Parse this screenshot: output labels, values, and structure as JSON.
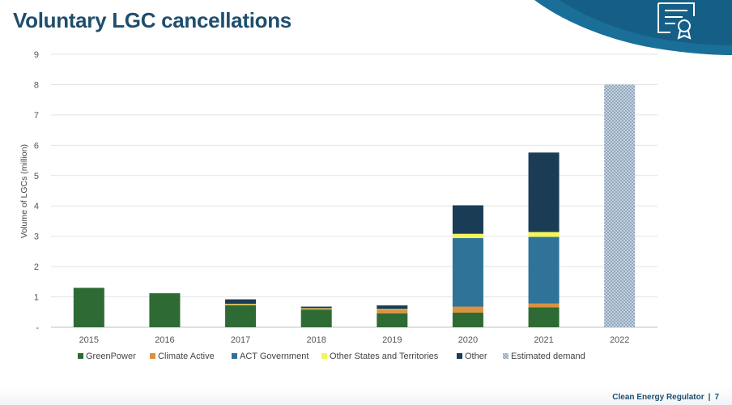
{
  "page": {
    "title": "Voluntary LGC cancellations",
    "footer_org": "Clean Energy Regulator",
    "footer_sep": "|",
    "footer_page": "7"
  },
  "colors": {
    "title": "#1f4e6e",
    "corner_band": "#1a6f98",
    "corner_dark": "#155f86"
  },
  "icons": {
    "corner": "certificate-icon"
  },
  "chart_data": {
    "type": "bar",
    "stacked": true,
    "categories": [
      "2015",
      "2016",
      "2017",
      "2018",
      "2019",
      "2020",
      "2021",
      "2022"
    ],
    "series": [
      {
        "name": "GreenPower",
        "color": "#2e6b34",
        "values": [
          1.3,
          1.12,
          0.72,
          0.58,
          0.46,
          0.48,
          0.66,
          0
        ]
      },
      {
        "name": "Climate Active",
        "color": "#d9923f",
        "values": [
          0,
          0,
          0.03,
          0.04,
          0.12,
          0.2,
          0.12,
          0
        ]
      },
      {
        "name": "ACT Government",
        "color": "#2f7398",
        "values": [
          0,
          0,
          0,
          0,
          0,
          2.26,
          2.2,
          0
        ]
      },
      {
        "name": "Other States and Territories",
        "color": "#f5f55a",
        "values": [
          0,
          0,
          0.02,
          0.01,
          0.02,
          0.14,
          0.16,
          0
        ]
      },
      {
        "name": "Other",
        "color": "#1a3d55",
        "values": [
          0,
          0,
          0.15,
          0.05,
          0.12,
          0.94,
          2.62,
          0
        ]
      },
      {
        "name": "Estimated demand",
        "color": "#8fa8bf",
        "pattern": "dotted",
        "values": [
          0,
          0,
          0,
          0,
          0,
          0,
          0,
          8.0
        ]
      }
    ],
    "y_tick_labels": [
      "-",
      "1",
      "2",
      "3",
      "4",
      "5",
      "6",
      "7",
      "8",
      "9"
    ],
    "ylabel": "Volume of LGCs (million)",
    "xlabel": "",
    "ylim": [
      0,
      9
    ],
    "grid": true,
    "legend": "bottom"
  }
}
